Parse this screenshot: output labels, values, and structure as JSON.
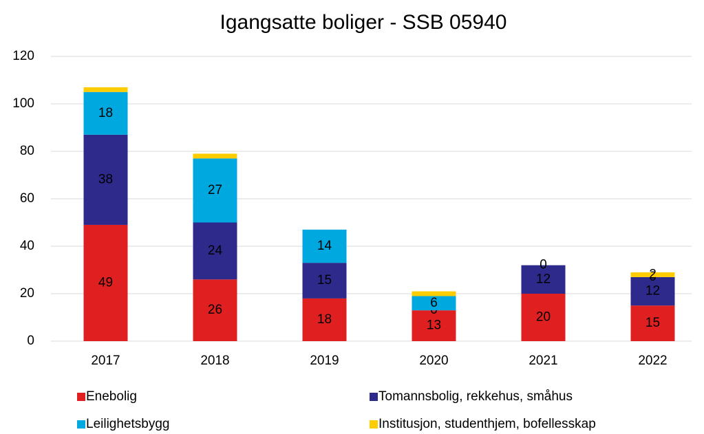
{
  "chart_data": {
    "type": "stacked_bar",
    "title": "Igangsatte boliger - SSB 05940",
    "categories": [
      "2017",
      "2018",
      "2019",
      "2020",
      "2021",
      "2022"
    ],
    "series": [
      {
        "name": "Enebolig",
        "color": "#e02020",
        "values": [
          49,
          26,
          18,
          13,
          20,
          15
        ],
        "value_labels": [
          "49",
          "26",
          "18",
          "13",
          "20",
          "15"
        ]
      },
      {
        "name": "Tomannsbolig, rekkehus, småhus",
        "color": "#2e2a8c",
        "values": [
          38,
          24,
          15,
          0,
          12,
          12
        ],
        "value_labels": [
          "38",
          "24",
          "15",
          "0",
          "12",
          "12"
        ]
      },
      {
        "name": "Leilighetsbygg",
        "color": "#00a8e0",
        "values": [
          18,
          27,
          14,
          6,
          0,
          0
        ],
        "value_labels": [
          "18",
          "27",
          "14",
          "6",
          "0",
          "0"
        ]
      },
      {
        "name": "Institusjon, studenthjem, bofellesskap",
        "color": "#ffcc00",
        "values": [
          2,
          2,
          0,
          2,
          0,
          2
        ],
        "value_labels": [
          null,
          null,
          null,
          null,
          null,
          "2"
        ]
      }
    ],
    "ylim": [
      0,
      120
    ],
    "yticks": [
      0,
      20,
      40,
      60,
      80,
      100,
      120
    ],
    "grid": true,
    "legend": "bottom"
  }
}
